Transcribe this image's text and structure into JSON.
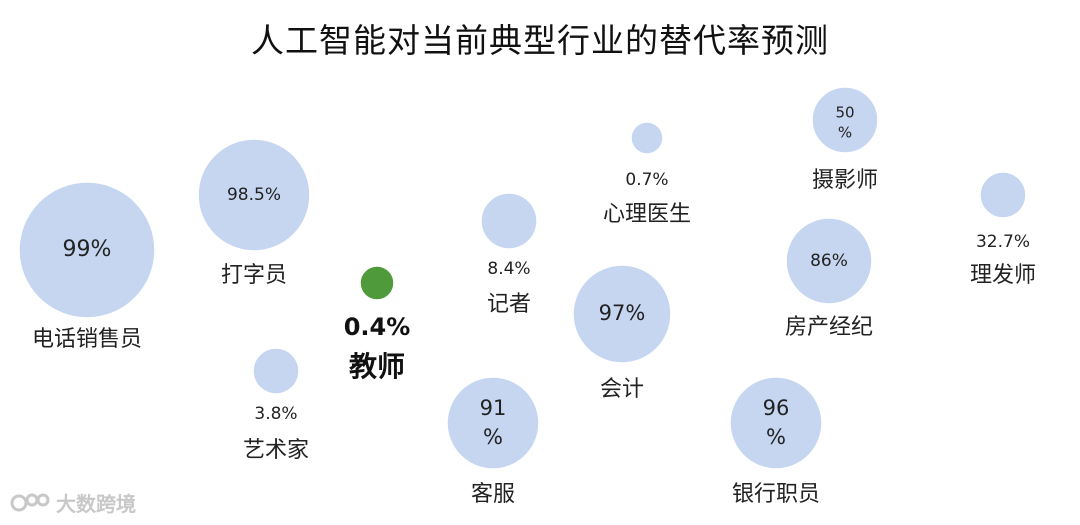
{
  "colors": {
    "bubble": "#c6d6f1",
    "highlight": "#4f9a3a",
    "text": "#222222"
  },
  "watermark": {
    "text": "大数跨境"
  },
  "chart_data": {
    "type": "scatter",
    "title": "人工智能对当前典型行业的替代率预测",
    "xlabel": "",
    "ylabel": "",
    "grid": false,
    "points": [
      {
        "name": "电话销售员",
        "value_label": "99%",
        "value": 99,
        "label_inside": true
      },
      {
        "name": "打字员",
        "value_label": "98.5%",
        "value": 98.5,
        "label_inside": true
      },
      {
        "name": "艺术家",
        "value_label": "3.8%",
        "value": 3.8,
        "label_inside": false
      },
      {
        "name": "教师",
        "value_label": "0.4%",
        "value": 0.4,
        "label_inside": false,
        "highlight": true
      },
      {
        "name": "记者",
        "value_label": "8.4%",
        "value": 8.4,
        "label_inside": false
      },
      {
        "name": "客服",
        "value_label": "91%",
        "value": 91,
        "label_inside": true
      },
      {
        "name": "心理医生",
        "value_label": "0.7%",
        "value": 0.7,
        "label_inside": false
      },
      {
        "name": "会计",
        "value_label": "97%",
        "value": 97,
        "label_inside": true
      },
      {
        "name": "摄影师",
        "value_label": "50%",
        "value": 50,
        "label_inside": true
      },
      {
        "name": "房产经纪",
        "value_label": "86%",
        "value": 86,
        "label_inside": true
      },
      {
        "name": "银行职员",
        "value_label": "96%",
        "value": 96,
        "label_inside": true
      },
      {
        "name": "理发师",
        "value_label": "32.7%",
        "value": 32.7,
        "label_inside": false
      }
    ]
  }
}
